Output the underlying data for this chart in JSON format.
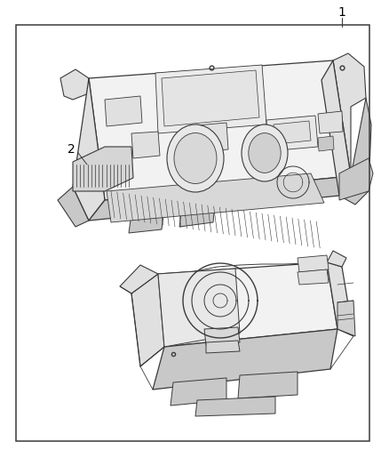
{
  "background_color": "#ffffff",
  "border_color": "#3a3a3a",
  "line_color": "#3a3a3a",
  "light_gray": "#f2f2f2",
  "mid_gray": "#e0e0e0",
  "dark_gray": "#c8c8c8",
  "label_1_text": "1",
  "label_2_text": "2",
  "figsize": [
    4.38,
    5.33
  ],
  "dpi": 100
}
